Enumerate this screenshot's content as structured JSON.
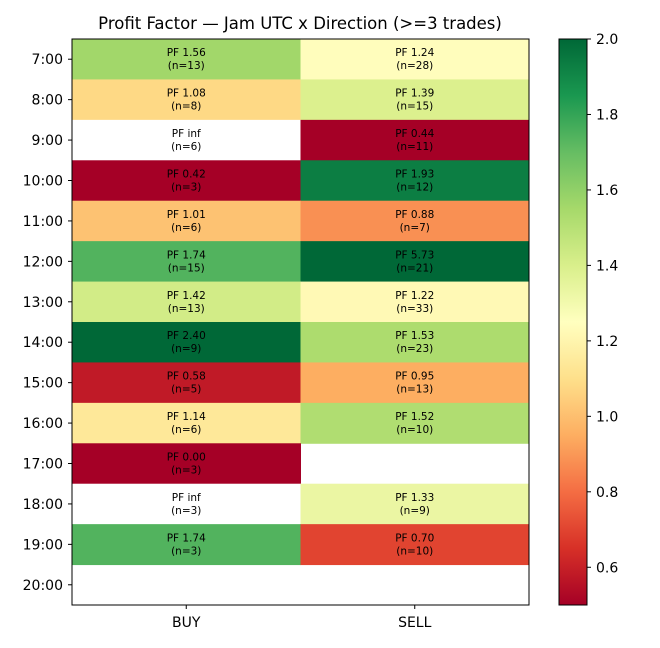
{
  "chart_data": {
    "type": "heatmap",
    "title": "Profit Factor — Jam UTC x Direction (>=3 trades)",
    "columns": [
      "BUY",
      "SELL"
    ],
    "rows": [
      "7:00",
      "8:00",
      "9:00",
      "10:00",
      "11:00",
      "12:00",
      "13:00",
      "14:00",
      "15:00",
      "16:00",
      "17:00",
      "18:00",
      "19:00",
      "20:00"
    ],
    "cells": [
      [
        {
          "pf": 1.56,
          "n": 13,
          "label": "PF 1.56",
          "count_label": "(n=13)"
        },
        {
          "pf": 1.24,
          "n": 28,
          "label": "PF 1.24",
          "count_label": "(n=28)"
        }
      ],
      [
        {
          "pf": 1.08,
          "n": 8,
          "label": "PF 1.08",
          "count_label": "(n=8)"
        },
        {
          "pf": 1.39,
          "n": 15,
          "label": "PF 1.39",
          "count_label": "(n=15)"
        }
      ],
      [
        {
          "pf": "inf",
          "n": 6,
          "label": "PF inf",
          "count_label": "(n=6)"
        },
        {
          "pf": 0.44,
          "n": 11,
          "label": "PF 0.44",
          "count_label": "(n=11)"
        }
      ],
      [
        {
          "pf": 0.42,
          "n": 3,
          "label": "PF 0.42",
          "count_label": "(n=3)"
        },
        {
          "pf": 1.93,
          "n": 12,
          "label": "PF 1.93",
          "count_label": "(n=12)"
        }
      ],
      [
        {
          "pf": 1.01,
          "n": 6,
          "label": "PF 1.01",
          "count_label": "(n=6)"
        },
        {
          "pf": 0.88,
          "n": 7,
          "label": "PF 0.88",
          "count_label": "(n=7)"
        }
      ],
      [
        {
          "pf": 1.74,
          "n": 15,
          "label": "PF 1.74",
          "count_label": "(n=15)"
        },
        {
          "pf": 5.73,
          "n": 21,
          "label": "PF 5.73",
          "count_label": "(n=21)"
        }
      ],
      [
        {
          "pf": 1.42,
          "n": 13,
          "label": "PF 1.42",
          "count_label": "(n=13)"
        },
        {
          "pf": 1.22,
          "n": 33,
          "label": "PF 1.22",
          "count_label": "(n=33)"
        }
      ],
      [
        {
          "pf": 2.4,
          "n": 9,
          "label": "PF 2.40",
          "count_label": "(n=9)"
        },
        {
          "pf": 1.53,
          "n": 23,
          "label": "PF 1.53",
          "count_label": "(n=23)"
        }
      ],
      [
        {
          "pf": 0.58,
          "n": 5,
          "label": "PF 0.58",
          "count_label": "(n=5)"
        },
        {
          "pf": 0.95,
          "n": 13,
          "label": "PF 0.95",
          "count_label": "(n=13)"
        }
      ],
      [
        {
          "pf": 1.14,
          "n": 6,
          "label": "PF 1.14",
          "count_label": "(n=6)"
        },
        {
          "pf": 1.52,
          "n": 10,
          "label": "PF 1.52",
          "count_label": "(n=10)"
        }
      ],
      [
        {
          "pf": 0.0,
          "n": 3,
          "label": "PF 0.00",
          "count_label": "(n=3)"
        },
        null
      ],
      [
        {
          "pf": "inf",
          "n": 3,
          "label": "PF inf",
          "count_label": "(n=3)"
        },
        {
          "pf": 1.33,
          "n": 9,
          "label": "PF 1.33",
          "count_label": "(n=9)"
        }
      ],
      [
        {
          "pf": 1.74,
          "n": 3,
          "label": "PF 1.74",
          "count_label": "(n=3)"
        },
        {
          "pf": 0.7,
          "n": 10,
          "label": "PF 0.70",
          "count_label": "(n=10)"
        }
      ],
      [
        null,
        null
      ]
    ],
    "colorbar": {
      "colormap": "RdYlGn",
      "vmin": 0.5,
      "vmax": 2.0,
      "ticks": [
        0.6,
        0.8,
        1.0,
        1.2,
        1.4,
        1.6,
        1.8,
        2.0
      ],
      "tick_labels": [
        "0.6",
        "0.8",
        "1.0",
        "1.2",
        "1.4",
        "1.6",
        "1.8",
        "2.0"
      ]
    },
    "missing_color": "#ffffff",
    "grid": false
  }
}
